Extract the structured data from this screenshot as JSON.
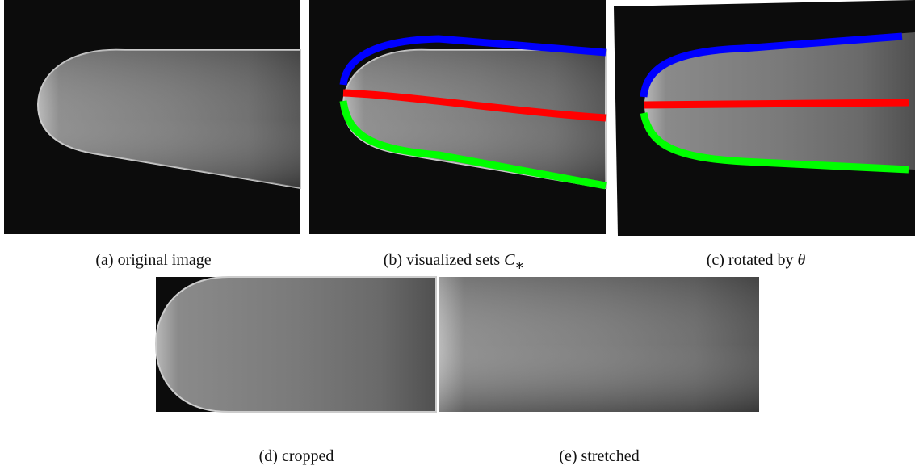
{
  "figures": [
    {
      "label": "(a)",
      "caption": "original image"
    },
    {
      "label": "(b)",
      "caption": "visualized sets",
      "math": "C",
      "math_sub": "∗"
    },
    {
      "label": "(c)",
      "caption": "rotated by",
      "math": "θ"
    },
    {
      "label": "(d)",
      "caption": "cropped"
    },
    {
      "label": "(e)",
      "caption": "stretched"
    }
  ]
}
